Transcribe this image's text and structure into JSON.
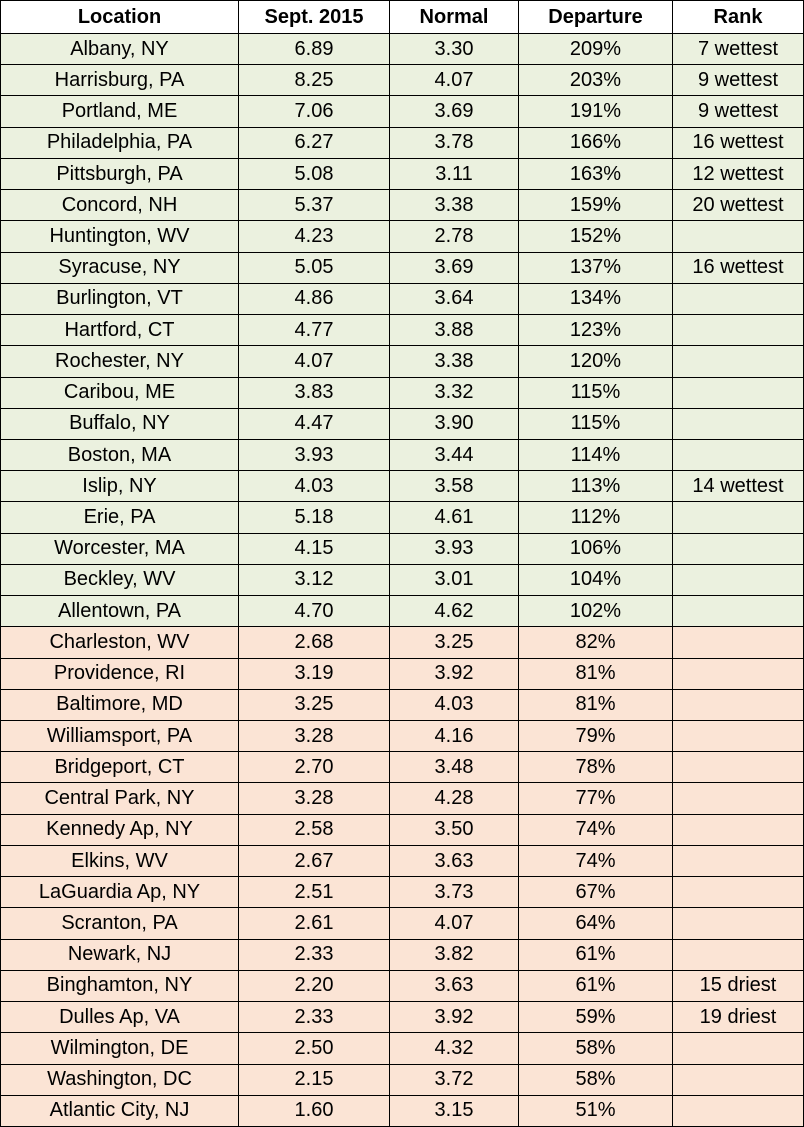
{
  "table": {
    "header": [
      "Location",
      "Sept. 2015",
      "Normal",
      "Departure",
      "Rank"
    ],
    "rows": [
      [
        "Albany, NY",
        "6.89",
        "3.30",
        "209%",
        "7 wettest"
      ],
      [
        "Harrisburg, PA",
        "8.25",
        "4.07",
        "203%",
        "9 wettest"
      ],
      [
        "Portland, ME",
        "7.06",
        "3.69",
        "191%",
        "9 wettest"
      ],
      [
        "Philadelphia, PA",
        "6.27",
        "3.78",
        "166%",
        "16 wettest"
      ],
      [
        "Pittsburgh, PA",
        "5.08",
        "3.11",
        "163%",
        "12 wettest"
      ],
      [
        "Concord, NH",
        "5.37",
        "3.38",
        "159%",
        "20 wettest"
      ],
      [
        "Huntington, WV",
        "4.23",
        "2.78",
        "152%",
        null
      ],
      [
        "Syracuse, NY",
        "5.05",
        "3.69",
        "137%",
        "16 wettest"
      ],
      [
        "Burlington, VT",
        "4.86",
        "3.64",
        "134%",
        null
      ],
      [
        "Hartford, CT",
        "4.77",
        "3.88",
        "123%",
        null
      ],
      [
        "Rochester, NY",
        "4.07",
        "3.38",
        "120%",
        null
      ],
      [
        "Caribou, ME",
        "3.83",
        "3.32",
        "115%",
        null
      ],
      [
        "Buffalo, NY",
        "4.47",
        "3.90",
        "115%",
        null
      ],
      [
        "Boston, MA",
        "3.93",
        "3.44",
        "114%",
        null
      ],
      [
        "Islip, NY",
        "4.03",
        "3.58",
        "113%",
        "14 wettest"
      ],
      [
        "Erie, PA",
        "5.18",
        "4.61",
        "112%",
        null
      ],
      [
        "Worcester, MA",
        "4.15",
        "3.93",
        "106%",
        null
      ],
      [
        "Beckley, WV",
        "3.12",
        "3.01",
        "104%",
        null
      ],
      [
        "Allentown, PA",
        "4.70",
        "4.62",
        "102%",
        null
      ],
      [
        "Charleston, WV",
        "2.68",
        "3.25",
        "82%",
        null
      ],
      [
        "Providence, RI",
        "3.19",
        "3.92",
        "81%",
        null
      ],
      [
        "Baltimore, MD",
        "3.25",
        "4.03",
        "81%",
        null
      ],
      [
        "Williamsport, PA",
        "3.28",
        "4.16",
        "79%",
        null
      ],
      [
        "Bridgeport, CT",
        "2.70",
        "3.48",
        "78%",
        null
      ],
      [
        "Central Park, NY",
        "3.28",
        "4.28",
        "77%",
        null
      ],
      [
        "Kennedy Ap, NY",
        "2.58",
        "3.50",
        "74%",
        null
      ],
      [
        "Elkins, WV",
        "2.67",
        "3.63",
        "74%",
        null
      ],
      [
        "LaGuardia Ap, NY",
        "2.51",
        "3.73",
        "67%",
        null
      ],
      [
        "Scranton, PA",
        "2.61",
        "4.07",
        "64%",
        null
      ],
      [
        "Newark, NJ",
        "2.33",
        "3.82",
        "61%",
        null
      ],
      [
        "Binghamton, NY",
        "2.20",
        "3.63",
        "61%",
        "15 driest"
      ],
      [
        "Dulles Ap, VA",
        "2.33",
        "3.92",
        "59%",
        "19 driest"
      ],
      [
        "Wilmington, DE",
        "2.50",
        "4.32",
        "58%",
        null
      ],
      [
        "Washington, DC",
        "2.15",
        "3.72",
        "58%",
        null
      ],
      [
        "Atlantic City, NJ",
        "1.60",
        "3.15",
        "51%",
        null
      ]
    ]
  }
}
